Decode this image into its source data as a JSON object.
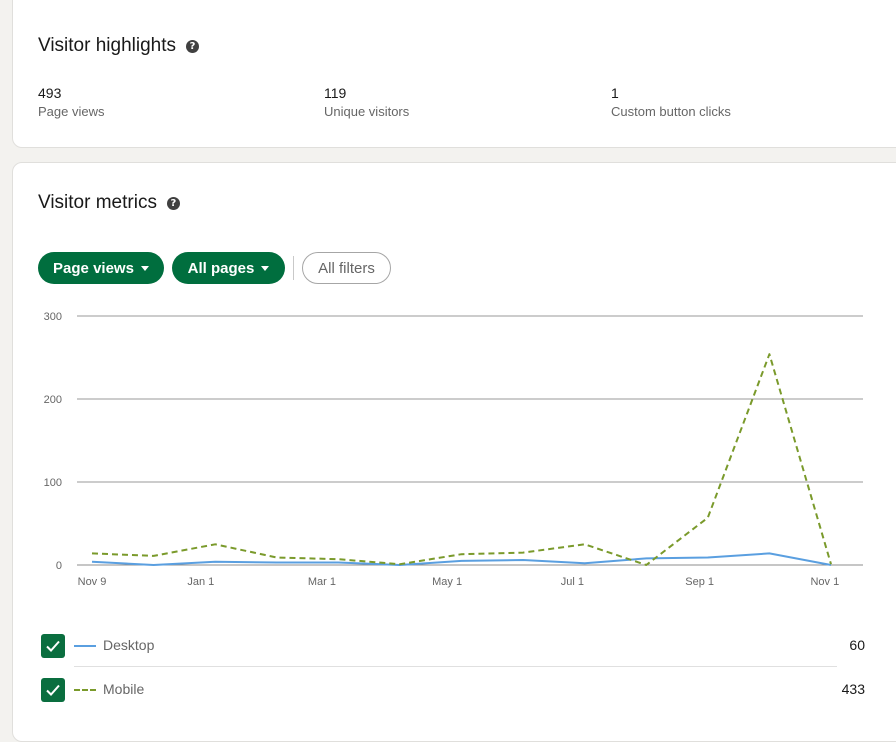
{
  "highlights": {
    "title": "Visitor highlights",
    "help_icon": "question-circle-icon",
    "stats": [
      {
        "value": "493",
        "label": "Page views"
      },
      {
        "value": "119",
        "label": "Unique visitors"
      },
      {
        "value": "1",
        "label": "Custom button clicks"
      }
    ]
  },
  "metrics": {
    "title": "Visitor metrics",
    "help_icon": "question-circle-icon",
    "filters": {
      "metric_label": "Page views",
      "pages_label": "All pages",
      "all_filters_label": "All filters"
    },
    "legend": [
      {
        "name": "Desktop",
        "total": "60",
        "checked": true
      },
      {
        "name": "Mobile",
        "total": "433",
        "checked": true
      }
    ]
  },
  "colors": {
    "brand_green": "#006e3e",
    "desktop_line": "#5a9fe0",
    "mobile_line": "#7a9a2b"
  },
  "chart_data": {
    "type": "line",
    "x": [
      "2022-11-09",
      "2022-12-09",
      "2023-01-08",
      "2023-02-07",
      "2023-03-09",
      "2023-04-08",
      "2023-05-08",
      "2023-06-07",
      "2023-07-07",
      "2023-08-06",
      "2023-09-05",
      "2023-10-05",
      "2023-11-04"
    ],
    "x_tick_labels": [
      "Nov 9",
      "Jan 1",
      "Mar 1",
      "May 1",
      "Jul 1",
      "Sep 1",
      "Nov 1"
    ],
    "x_tick_values": [
      "2022-11-09",
      "2023-01-01",
      "2023-03-01",
      "2023-05-01",
      "2023-07-01",
      "2023-09-01",
      "2023-11-01"
    ],
    "ylim": [
      0,
      300
    ],
    "y_ticks": [
      0,
      100,
      200,
      300
    ],
    "grid": true,
    "series": [
      {
        "name": "Desktop",
        "style": "solid",
        "values": [
          4,
          0,
          4,
          3,
          3,
          0,
          5,
          6,
          2,
          8,
          9,
          14,
          0
        ]
      },
      {
        "name": "Mobile",
        "style": "dashed",
        "values": [
          14,
          11,
          25,
          9,
          7,
          1,
          13,
          15,
          25,
          0,
          57,
          254,
          1
        ]
      }
    ]
  }
}
